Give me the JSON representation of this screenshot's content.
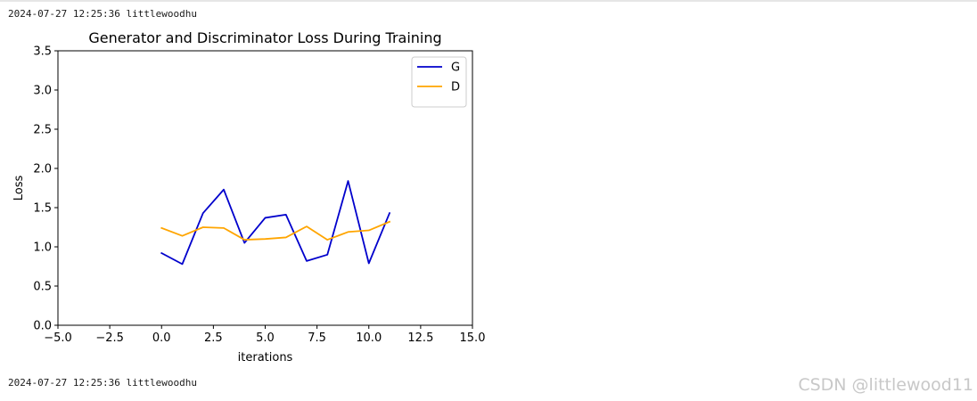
{
  "log_top": {
    "timestamp": "2024-07-27 12:25:36",
    "user": "littlewoodhu"
  },
  "log_bottom": {
    "timestamp": "2024-07-27 12:25:36",
    "user": "littlewoodhu"
  },
  "watermark": "CSDN @littlewood11",
  "chart_data": {
    "type": "line",
    "title": "Generator and Discriminator Loss During Training",
    "xlabel": "iterations",
    "ylabel": "Loss",
    "xlim": [
      -5,
      15
    ],
    "ylim": [
      0,
      3.5
    ],
    "xticks": [
      -5,
      -2.5,
      0,
      2.5,
      5,
      7.5,
      10,
      12.5,
      15
    ],
    "xtick_labels": [
      "−5.0",
      "−2.5",
      "0.0",
      "2.5",
      "5.0",
      "7.5",
      "10.0",
      "12.5",
      "15.0"
    ],
    "yticks": [
      0,
      0.5,
      1,
      1.5,
      2,
      2.5,
      3,
      3.5
    ],
    "ytick_labels": [
      "0.0",
      "0.5",
      "1.0",
      "1.5",
      "2.0",
      "2.5",
      "3.0",
      "3.5"
    ],
    "grid": false,
    "legend_position": "top-right",
    "x": [
      0,
      1,
      2,
      3,
      4,
      5,
      6,
      7,
      8,
      9,
      10,
      11
    ],
    "series": [
      {
        "name": "G",
        "color": "#0000cc",
        "values": [
          0.92,
          0.78,
          1.43,
          1.73,
          1.05,
          1.37,
          1.41,
          0.82,
          0.9,
          1.84,
          0.79,
          1.43
        ]
      },
      {
        "name": "D",
        "color": "#ffa500",
        "values": [
          1.24,
          1.14,
          1.25,
          1.24,
          1.09,
          1.1,
          1.12,
          1.26,
          1.09,
          1.19,
          1.21,
          1.32
        ]
      }
    ]
  }
}
